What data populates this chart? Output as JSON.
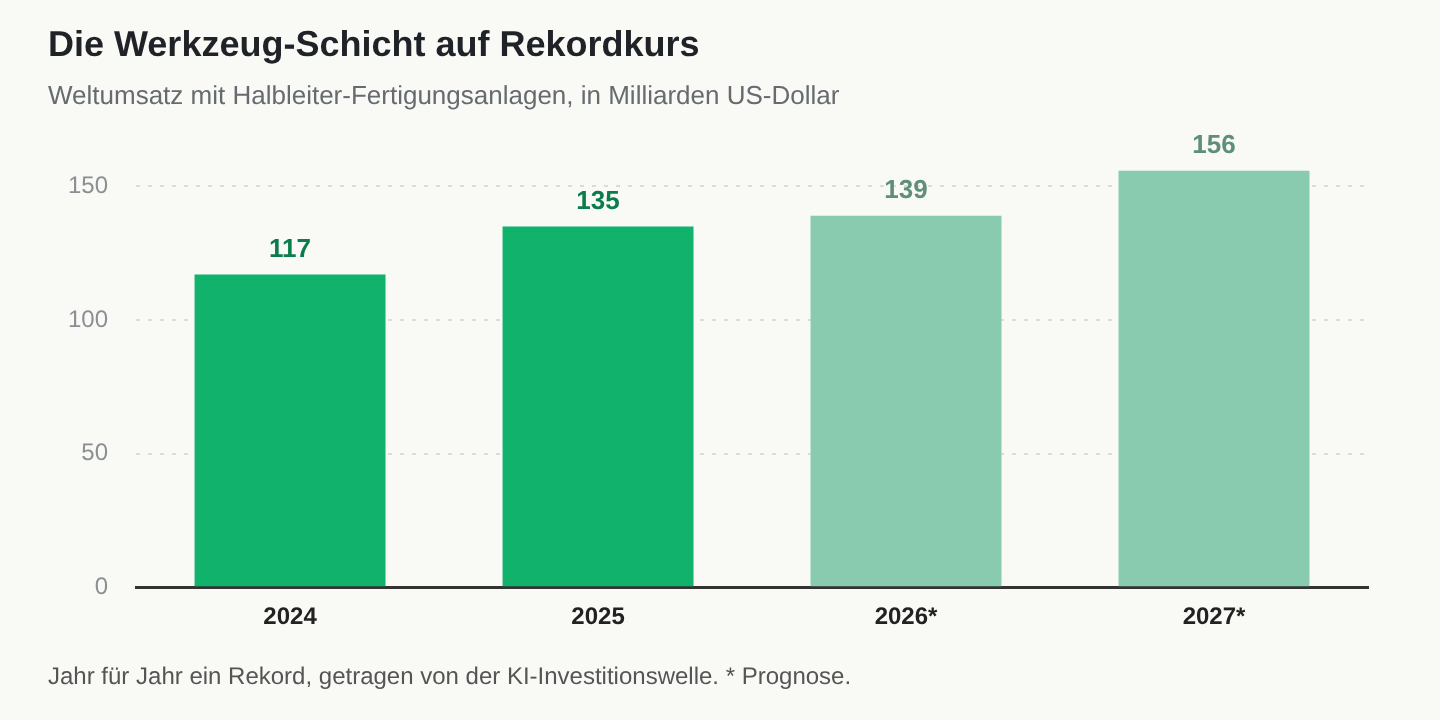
{
  "chart_data": {
    "type": "bar",
    "title": "Die Werkzeug-Schicht auf Rekordkurs",
    "subtitle": "Weltumsatz mit Halbleiter-Fertigungsanlagen, in Milliarden US-Dollar",
    "categories": [
      "2024",
      "2025",
      "2026*",
      "2027*"
    ],
    "values": [
      117,
      135,
      139,
      156
    ],
    "colors": [
      "#10b26c",
      "#10b26c",
      "#88cbae",
      "#88cbae"
    ],
    "ylim": [
      0,
      156
    ],
    "yticks": [
      0,
      50,
      100,
      150
    ],
    "grid": "y",
    "data_labels": true,
    "legend": false,
    "annotations": [
      "Jahr für Jahr ein Rekord, getragen von der KI-Investitionswelle. * Prognose."
    ]
  }
}
